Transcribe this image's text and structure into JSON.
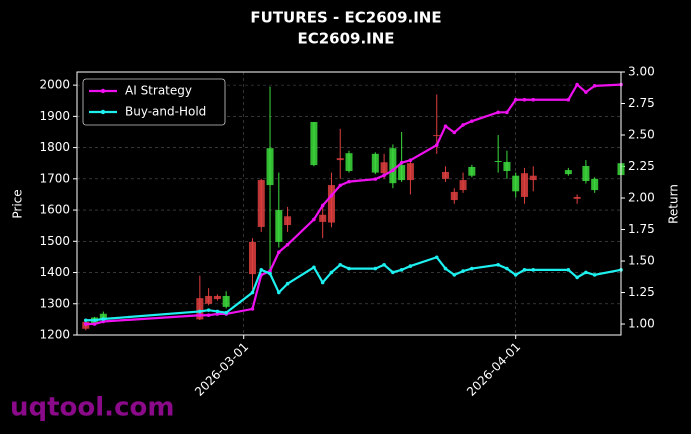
{
  "chart_data": {
    "type": "candlestick",
    "title": "FUTURES - EC2609.INE",
    "subtitle": "EC2609.INE",
    "y_label": "Price",
    "y2_label": "Return",
    "watermark": "uqtool.com",
    "x": [
      "2026-02-11",
      "2026-02-12",
      "2026-02-13",
      "2026-02-24",
      "2026-02-25",
      "2026-02-26",
      "2026-02-27",
      "2026-03-02",
      "2026-03-03",
      "2026-03-04",
      "2026-03-05",
      "2026-03-06",
      "2026-03-09",
      "2026-03-10",
      "2026-03-11",
      "2026-03-12",
      "2026-03-13",
      "2026-03-16",
      "2026-03-17",
      "2026-03-18",
      "2026-03-19",
      "2026-03-20",
      "2026-03-23",
      "2026-03-24",
      "2026-03-25",
      "2026-03-26",
      "2026-03-27",
      "2026-03-30",
      "2026-03-31",
      "2026-04-01",
      "2026-04-02",
      "2026-04-03",
      "2026-04-07",
      "2026-04-08",
      "2026-04-09",
      "2026-04-10",
      "2026-04-13"
    ],
    "open": [
      1242,
      1238,
      1250,
      1318,
      1325,
      1325,
      1290,
      1498,
      1696,
      1680,
      1498,
      1580,
      1744,
      1585,
      1680,
      1766,
      1725,
      1720,
      1753,
      1686,
      1696,
      1750,
      1840,
      1722,
      1658,
      1696,
      1710,
      1754,
      1725,
      1660,
      1718,
      1710,
      1715,
      1642,
      1693,
      1664,
      1712
    ],
    "high": [
      1245,
      1258,
      1275,
      1390,
      1350,
      1330,
      1340,
      1510,
      1700,
      1995,
      1720,
      1610,
      1882,
      1620,
      1720,
      1860,
      1790,
      1785,
      1780,
      1810,
      1850,
      1760,
      1970,
      1740,
      1670,
      1720,
      1745,
      1840,
      1790,
      1720,
      1735,
      1740,
      1735,
      1650,
      1760,
      1705,
      1755
    ],
    "low": [
      1215,
      1232,
      1245,
      1248,
      1295,
      1310,
      1285,
      1340,
      1530,
      1410,
      1480,
      1530,
      1740,
      1510,
      1545,
      1700,
      1720,
      1715,
      1700,
      1670,
      1690,
      1650,
      1780,
      1690,
      1620,
      1655,
      1705,
      1720,
      1700,
      1640,
      1620,
      1660,
      1710,
      1620,
      1685,
      1655,
      1705
    ],
    "close": [
      1220,
      1256,
      1268,
      1250,
      1300,
      1315,
      1325,
      1395,
      1546,
      1798,
      1600,
      1552,
      1882,
      1562,
      1560,
      1760,
      1782,
      1780,
      1718,
      1798,
      1744,
      1696,
      1838,
      1700,
      1632,
      1664,
      1738,
      1757,
      1754,
      1710,
      1642,
      1696,
      1728,
      1636,
      1741,
      1700,
      1750
    ],
    "up_color": "#3ddc3d",
    "down_color": "#e04040",
    "series": [
      {
        "name": "AI Strategy",
        "color": "#ee10ee",
        "axis": "y2",
        "values": [
          1.0,
          1.0,
          1.02,
          1.07,
          1.07,
          1.08,
          1.08,
          1.12,
          1.39,
          1.42,
          1.57,
          1.63,
          1.83,
          1.94,
          2.02,
          2.1,
          2.13,
          2.15,
          2.18,
          2.22,
          2.28,
          2.3,
          2.42,
          2.57,
          2.52,
          2.58,
          2.61,
          2.68,
          2.68,
          2.78,
          2.78,
          2.78,
          2.78,
          2.9,
          2.84,
          2.89,
          2.9
        ]
      },
      {
        "name": "Buy-and-Hold",
        "color": "#1ef0f0",
        "axis": "y2",
        "values": [
          1.03,
          1.03,
          1.04,
          1.1,
          1.11,
          1.1,
          1.09,
          1.25,
          1.43,
          1.4,
          1.25,
          1.32,
          1.45,
          1.33,
          1.41,
          1.47,
          1.44,
          1.44,
          1.47,
          1.41,
          1.43,
          1.46,
          1.53,
          1.44,
          1.39,
          1.42,
          1.44,
          1.47,
          1.44,
          1.39,
          1.43,
          1.43,
          1.43,
          1.37,
          1.41,
          1.39,
          1.43
        ]
      }
    ],
    "xlim": [
      "2026-02-10",
      "2026-04-13"
    ],
    "xticks": [
      "2026-03-01",
      "2026-04-01"
    ],
    "ylim": [
      1200,
      2042
    ],
    "yticks": [
      1200,
      1300,
      1400,
      1500,
      1600,
      1700,
      1800,
      1900,
      2000
    ],
    "y2lim": [
      0.913,
      3.0
    ],
    "y2ticks": [
      {
        "value": 1,
        "label": "1.00"
      },
      {
        "value": 1.25,
        "label": "1.25"
      },
      {
        "value": 1.5,
        "label": "1.50"
      },
      {
        "value": 1.75,
        "label": "1.75"
      },
      {
        "value": 2,
        "label": "2.00"
      },
      {
        "value": 2.25,
        "label": "2.25"
      },
      {
        "value": 2.5,
        "label": "2.50"
      },
      {
        "value": 2.75,
        "label": "2.75"
      },
      {
        "value": 3,
        "label": "3.00"
      }
    ],
    "grid": true,
    "legend": "upper left"
  }
}
